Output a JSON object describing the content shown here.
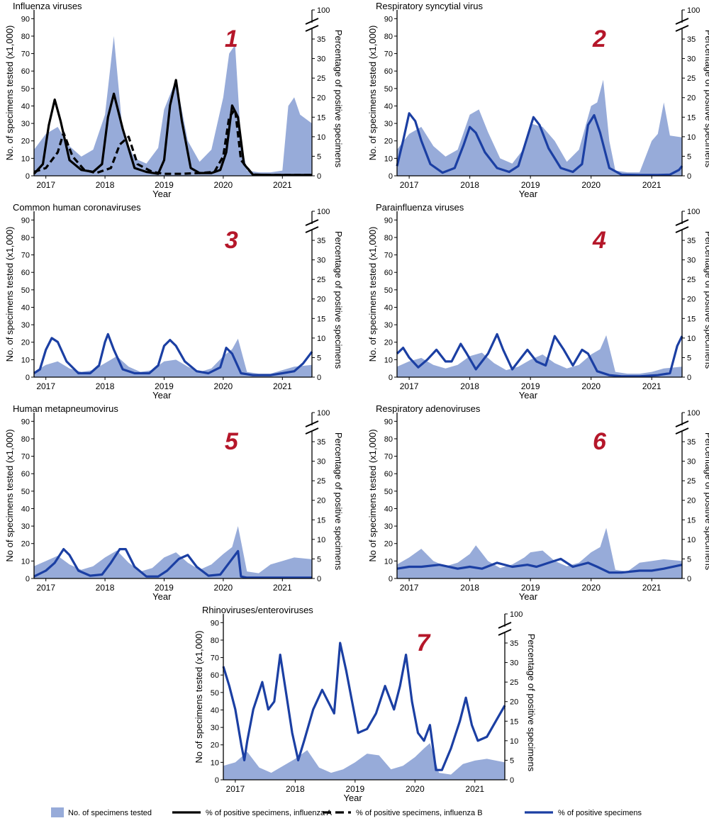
{
  "colors": {
    "area": "#97ABD9",
    "blue_line": "#1B3FA3",
    "black_line": "#000000",
    "badge": "#B5172A",
    "axis": "#000000"
  },
  "shared_axes": {
    "left_ticks": [
      0,
      10,
      20,
      30,
      40,
      50,
      60,
      70,
      80,
      90
    ],
    "right_ticks": [
      0,
      5,
      10,
      15,
      20,
      25,
      30,
      35
    ],
    "right_top_tick": "100",
    "year_ticks": [
      "2017",
      "2018",
      "2019",
      "2020",
      "2021"
    ],
    "xlabel": "Year",
    "right_label": "Percentage of positive specimens"
  },
  "legend": [
    {
      "key": "area",
      "label": "No. of specimens tested"
    },
    {
      "key": "flu_a",
      "label": "% of positive specimens, influenza A"
    },
    {
      "key": "flu_b",
      "label": "% of positive specimens, influenza B"
    },
    {
      "key": "pct",
      "label": "% of positive specimens"
    }
  ],
  "chart_data": [
    {
      "type": "area",
      "badge": "1",
      "title": "Influenza viruses",
      "ylabel": "No. of specimens tested (x1,000)",
      "ylim": [
        0,
        95
      ],
      "y2lim": [
        0,
        37
      ],
      "x": [
        2016.8,
        2017.0,
        2017.2,
        2017.4,
        2017.6,
        2017.8,
        2018.0,
        2018.15,
        2018.3,
        2018.5,
        2018.7,
        2018.9,
        2019.0,
        2019.2,
        2019.4,
        2019.6,
        2019.8,
        2020.0,
        2020.1,
        2020.2,
        2020.3,
        2020.4,
        2020.6,
        2020.8,
        2021.0,
        2021.1,
        2021.2,
        2021.3,
        2021.5
      ],
      "tested": [
        15,
        24,
        28,
        17,
        11,
        15,
        35,
        80,
        25,
        10,
        7,
        16,
        38,
        55,
        20,
        8,
        15,
        45,
        70,
        75,
        20,
        3,
        2,
        2,
        3,
        40,
        45,
        35,
        30
      ],
      "series": [
        {
          "name": "influenza A",
          "style": "solid",
          "x": [
            2016.8,
            2016.95,
            2017.05,
            2017.15,
            2017.25,
            2017.4,
            2017.6,
            2017.8,
            2017.95,
            2018.05,
            2018.15,
            2018.3,
            2018.5,
            2018.7,
            2018.9,
            2019.0,
            2019.1,
            2019.2,
            2019.3,
            2019.45,
            2019.6,
            2019.8,
            2019.95,
            2020.05,
            2020.15,
            2020.25,
            2020.35,
            2020.5,
            2020.8,
            2021.2,
            2021.5
          ],
          "values": [
            0.5,
            3,
            13,
            19.5,
            14,
            4,
            1.5,
            1,
            3,
            15,
            21,
            12,
            2,
            1,
            0.5,
            4,
            18,
            24.5,
            14,
            2,
            0.7,
            0.7,
            1.5,
            6,
            18,
            15,
            3,
            0.3,
            0.2,
            0.2,
            0.2
          ]
        },
        {
          "name": "influenza B",
          "style": "dashed",
          "x": [
            2016.8,
            2017.0,
            2017.2,
            2017.3,
            2017.45,
            2017.65,
            2017.85,
            2018.1,
            2018.25,
            2018.4,
            2018.55,
            2018.8,
            2019.0,
            2019.3,
            2019.6,
            2019.85,
            2020.0,
            2020.1,
            2020.2,
            2020.3,
            2020.5,
            2020.8,
            2021.2,
            2021.5
          ],
          "values": [
            1,
            2,
            6,
            11,
            5,
            1.5,
            0.7,
            2,
            8,
            10,
            3,
            1,
            0.5,
            0.5,
            0.7,
            1,
            5,
            15,
            17,
            4,
            0.3,
            0.2,
            0.2,
            0.2
          ]
        }
      ]
    },
    {
      "type": "area",
      "badge": "2",
      "title": "Respiratory syncytial virus",
      "ylabel": "No. of specimens tested (x1,000)",
      "ylim": [
        0,
        95
      ],
      "y2lim": [
        0,
        37
      ],
      "x": [
        2016.8,
        2017.0,
        2017.2,
        2017.4,
        2017.6,
        2017.8,
        2018.0,
        2018.15,
        2018.3,
        2018.5,
        2018.7,
        2018.9,
        2019.0,
        2019.2,
        2019.4,
        2019.6,
        2019.8,
        2020.0,
        2020.1,
        2020.2,
        2020.3,
        2020.4,
        2020.6,
        2020.8,
        2021.0,
        2021.1,
        2021.2,
        2021.3,
        2021.5
      ],
      "tested": [
        15,
        24,
        28,
        17,
        11,
        15,
        35,
        38,
        25,
        10,
        7,
        16,
        30,
        28,
        20,
        8,
        15,
        40,
        42,
        55,
        20,
        3,
        2,
        2,
        20,
        24,
        42,
        23,
        22
      ],
      "series": [
        {
          "name": "",
          "style": "blue",
          "x": [
            2016.8,
            2016.9,
            2017.0,
            2017.1,
            2017.2,
            2017.35,
            2017.55,
            2017.75,
            2017.9,
            2018.0,
            2018.1,
            2018.25,
            2018.45,
            2018.65,
            2018.8,
            2018.95,
            2019.05,
            2019.15,
            2019.3,
            2019.5,
            2019.7,
            2019.85,
            2019.95,
            2020.05,
            2020.15,
            2020.3,
            2020.5,
            2020.8,
            2021.1,
            2021.3,
            2021.45,
            2021.5
          ],
          "values": [
            2.5,
            9,
            16,
            14,
            9,
            3,
            0.8,
            2,
            8,
            12.5,
            11,
            6,
            2,
            1,
            2.5,
            10,
            15,
            13,
            7,
            2,
            1,
            3,
            13,
            15.5,
            11,
            2,
            0.3,
            0.2,
            0.2,
            0.3,
            1.5,
            2.5
          ]
        }
      ]
    },
    {
      "type": "area",
      "badge": "3",
      "title": "Common human coronaviruses",
      "ylabel": "No. of specimens tested (x1,000)",
      "ylim": [
        0,
        95
      ],
      "y2lim": [
        0,
        37
      ],
      "x": [
        2016.8,
        2017.0,
        2017.2,
        2017.4,
        2017.6,
        2017.8,
        2018.0,
        2018.2,
        2018.4,
        2018.6,
        2018.8,
        2019.0,
        2019.2,
        2019.4,
        2019.6,
        2019.8,
        2020.0,
        2020.15,
        2020.25,
        2020.4,
        2020.6,
        2020.8,
        2021.0,
        2021.2,
        2021.5
      ],
      "tested": [
        3,
        7,
        9,
        5,
        3,
        4,
        8,
        12,
        6,
        3,
        4,
        9,
        10,
        6,
        3,
        5,
        12,
        16,
        22,
        3,
        2,
        2,
        4,
        6,
        7
      ],
      "series": [
        {
          "name": "",
          "style": "blue",
          "x": [
            2016.8,
            2016.9,
            2017.0,
            2017.1,
            2017.2,
            2017.35,
            2017.55,
            2017.75,
            2017.9,
            2018.0,
            2018.05,
            2018.15,
            2018.3,
            2018.5,
            2018.75,
            2018.9,
            2019.0,
            2019.1,
            2019.2,
            2019.35,
            2019.55,
            2019.75,
            2019.95,
            2020.05,
            2020.15,
            2020.3,
            2020.5,
            2020.8,
            2021.0,
            2021.2,
            2021.35,
            2021.5
          ],
          "values": [
            1,
            2,
            7,
            10,
            9,
            4,
            1,
            1,
            3,
            9,
            11,
            7,
            2,
            1,
            1,
            3,
            8,
            9.5,
            8,
            4,
            1.5,
            1,
            2.5,
            7.5,
            6,
            1,
            0.5,
            0.5,
            1,
            1.5,
            3.5,
            6.5
          ]
        }
      ]
    },
    {
      "type": "area",
      "badge": "4",
      "title": "Parainfluenza viruses",
      "ylabel": "No. of specimens tested (x1,000)",
      "ylim": [
        0,
        95
      ],
      "y2lim": [
        0,
        37
      ],
      "x": [
        2016.8,
        2017.0,
        2017.2,
        2017.4,
        2017.6,
        2017.8,
        2018.0,
        2018.2,
        2018.4,
        2018.6,
        2018.8,
        2019.0,
        2019.2,
        2019.4,
        2019.6,
        2019.8,
        2020.0,
        2020.15,
        2020.25,
        2020.4,
        2020.6,
        2020.8,
        2021.0,
        2021.2,
        2021.5
      ],
      "tested": [
        6,
        9,
        11,
        7,
        5,
        7,
        12,
        14,
        8,
        4,
        6,
        10,
        13,
        8,
        5,
        7,
        13,
        16,
        24,
        3,
        2,
        2,
        3,
        5,
        6
      ],
      "series": [
        {
          "name": "",
          "style": "blue",
          "x": [
            2016.8,
            2016.9,
            2017.0,
            2017.15,
            2017.3,
            2017.45,
            2017.6,
            2017.7,
            2017.85,
            2017.95,
            2018.1,
            2018.3,
            2018.45,
            2018.55,
            2018.7,
            2018.85,
            2018.95,
            2019.1,
            2019.25,
            2019.4,
            2019.55,
            2019.7,
            2019.85,
            2019.95,
            2020.1,
            2020.3,
            2020.5,
            2020.8,
            2021.1,
            2021.3,
            2021.42,
            2021.5
          ],
          "values": [
            6,
            7.5,
            5,
            2.5,
            4.5,
            7,
            4,
            4,
            8.5,
            6,
            2,
            6,
            11,
            7,
            2,
            5,
            7,
            4,
            3,
            10.5,
            7,
            3,
            7,
            6,
            1.5,
            0.5,
            0.2,
            0.2,
            0.5,
            1,
            8,
            10.5
          ]
        }
      ]
    },
    {
      "type": "area",
      "badge": "5",
      "title": "Human metapneumovirus",
      "ylabel": "No of specimens tested (x1,000)",
      "ylim": [
        0,
        95
      ],
      "y2lim": [
        0,
        37
      ],
      "x": [
        2016.8,
        2017.0,
        2017.2,
        2017.4,
        2017.6,
        2017.8,
        2018.0,
        2018.2,
        2018.4,
        2018.6,
        2018.8,
        2019.0,
        2019.2,
        2019.4,
        2019.6,
        2019.8,
        2020.0,
        2020.15,
        2020.25,
        2020.4,
        2020.6,
        2020.8,
        2021.0,
        2021.2,
        2021.5
      ],
      "tested": [
        7,
        10,
        13,
        8,
        5,
        7,
        12,
        16,
        9,
        4,
        6,
        12,
        15,
        9,
        5,
        8,
        14,
        18,
        30,
        4,
        3,
        8,
        10,
        12,
        11
      ],
      "series": [
        {
          "name": "",
          "style": "blue",
          "x": [
            2016.8,
            2017.0,
            2017.15,
            2017.3,
            2017.4,
            2017.55,
            2017.75,
            2017.95,
            2018.1,
            2018.25,
            2018.35,
            2018.5,
            2018.7,
            2018.9,
            2019.05,
            2019.25,
            2019.4,
            2019.55,
            2019.75,
            2019.95,
            2020.1,
            2020.25,
            2020.3,
            2020.4,
            2020.7,
            2021.0,
            2021.5
          ],
          "values": [
            0.5,
            2,
            4,
            7.5,
            6,
            2,
            0.7,
            1,
            4,
            7.5,
            7.5,
            3,
            0.5,
            0.5,
            2,
            5,
            6,
            3,
            0.7,
            1,
            4,
            7,
            0.5,
            0.2,
            0.2,
            0.2,
            0.2
          ]
        }
      ]
    },
    {
      "type": "area",
      "badge": "6",
      "title": "Respiratory adenoviruses",
      "ylabel": "No of specimens tested (x1,000)",
      "ylim": [
        0,
        95
      ],
      "y2lim": [
        0,
        37
      ],
      "x": [
        2016.8,
        2017.0,
        2017.2,
        2017.4,
        2017.6,
        2017.8,
        2018.0,
        2018.1,
        2018.3,
        2018.5,
        2018.7,
        2018.9,
        2019.0,
        2019.2,
        2019.4,
        2019.6,
        2019.8,
        2020.0,
        2020.15,
        2020.25,
        2020.4,
        2020.6,
        2020.8,
        2021.0,
        2021.2,
        2021.5
      ],
      "tested": [
        8,
        12,
        17,
        10,
        7,
        9,
        14,
        19,
        10,
        6,
        8,
        12,
        15,
        16,
        10,
        7,
        9,
        15,
        18,
        29,
        5,
        4,
        9,
        10,
        11,
        10
      ],
      "series": [
        {
          "name": "",
          "style": "blue",
          "x": [
            2016.8,
            2017.0,
            2017.2,
            2017.5,
            2017.8,
            2018.0,
            2018.2,
            2018.45,
            2018.7,
            2018.95,
            2019.1,
            2019.3,
            2019.5,
            2019.7,
            2019.95,
            2020.1,
            2020.3,
            2020.5,
            2020.8,
            2021.0,
            2021.2,
            2021.5
          ],
          "values": [
            2.5,
            3,
            3,
            3.5,
            2.5,
            3,
            2.5,
            4,
            3,
            3.5,
            3,
            4,
            5,
            3,
            4,
            3,
            1.5,
            1.5,
            2,
            2,
            2.5,
            3.5
          ]
        }
      ]
    },
    {
      "type": "area",
      "badge": "7",
      "title": "Rhinoviruses/enteroviruses",
      "ylabel": "No of specimens tested (x1,000)",
      "ylim": [
        0,
        95
      ],
      "y2lim": [
        0,
        37
      ],
      "x": [
        2016.8,
        2017.0,
        2017.2,
        2017.4,
        2017.6,
        2017.8,
        2018.0,
        2018.2,
        2018.4,
        2018.6,
        2018.8,
        2019.0,
        2019.2,
        2019.4,
        2019.6,
        2019.8,
        2020.0,
        2020.15,
        2020.25,
        2020.4,
        2020.6,
        2020.8,
        2021.0,
        2021.2,
        2021.5
      ],
      "tested": [
        8,
        10,
        16,
        7,
        4,
        8,
        12,
        17,
        7,
        4,
        6,
        10,
        15,
        14,
        6,
        8,
        13,
        18,
        21,
        4,
        3,
        9,
        11,
        12,
        10
      ],
      "series": [
        {
          "name": "",
          "style": "blue",
          "x": [
            2016.8,
            2016.9,
            2017.0,
            2017.1,
            2017.15,
            2017.2,
            2017.3,
            2017.45,
            2017.55,
            2017.65,
            2017.75,
            2017.85,
            2017.95,
            2018.05,
            2018.15,
            2018.3,
            2018.45,
            2018.55,
            2018.65,
            2018.75,
            2018.85,
            2018.95,
            2019.05,
            2019.2,
            2019.35,
            2019.5,
            2019.65,
            2019.75,
            2019.85,
            2019.95,
            2020.05,
            2020.15,
            2020.25,
            2020.35,
            2020.45,
            2020.6,
            2020.75,
            2020.85,
            2020.95,
            2021.05,
            2021.2,
            2021.35,
            2021.5
          ],
          "values": [
            29,
            24,
            18,
            9,
            5,
            10,
            18,
            25,
            18,
            20,
            32,
            22,
            12,
            5,
            10,
            18,
            23,
            20,
            17,
            35,
            28,
            20,
            12,
            13,
            17,
            24,
            18,
            24,
            32,
            20,
            12,
            10,
            14,
            2.5,
            2.5,
            8,
            15,
            21,
            14,
            10,
            11,
            15,
            19
          ]
        }
      ]
    }
  ]
}
